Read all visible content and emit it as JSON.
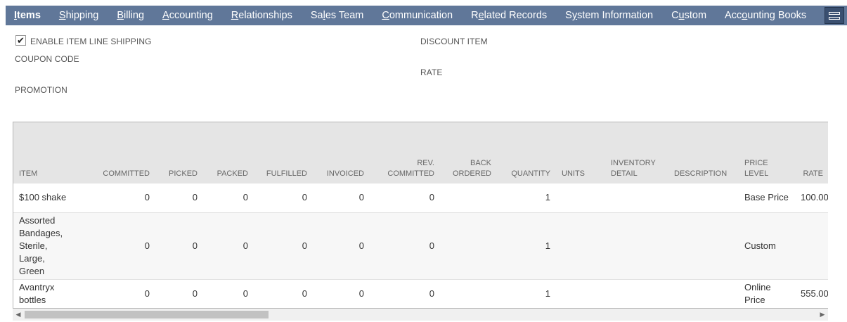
{
  "tabs": [
    {
      "pre": "",
      "key": "I",
      "post": "tems",
      "active": true
    },
    {
      "pre": "",
      "key": "S",
      "post": "hipping"
    },
    {
      "pre": "",
      "key": "B",
      "post": "illing"
    },
    {
      "pre": "",
      "key": "A",
      "post": "ccounting"
    },
    {
      "pre": "",
      "key": "R",
      "post": "elationships"
    },
    {
      "pre": "Sa",
      "key": "l",
      "post": "es Team"
    },
    {
      "pre": "",
      "key": "C",
      "post": "ommunication"
    },
    {
      "pre": "R",
      "key": "e",
      "post": "lated Records"
    },
    {
      "pre": "S",
      "key": "y",
      "post": "stem Information"
    },
    {
      "pre": "C",
      "key": "u",
      "post": "stom"
    },
    {
      "pre": "Acc",
      "key": "o",
      "post": "unting Books"
    }
  ],
  "form": {
    "enable_line_shipping_label": "ENABLE ITEM LINE SHIPPING",
    "enable_line_shipping_checked": "✔",
    "coupon_code_label": "COUPON CODE",
    "promotion_label": "PROMOTION",
    "discount_item_label": "DISCOUNT ITEM",
    "rate_label": "RATE"
  },
  "table": {
    "headers": [
      "ITEM",
      "COMMITTED",
      "PICKED",
      "PACKED",
      "FULFILLED",
      "INVOICED",
      "REV. COMMITTED",
      "BACK ORDERED",
      "QUANTITY",
      "UNITS",
      "INVENTORY DETAIL",
      "DESCRIPTION",
      "PRICE LEVEL",
      "RATE"
    ],
    "rows": [
      {
        "item": "$100 shake",
        "committed": "0",
        "picked": "0",
        "packed": "0",
        "fulfilled": "0",
        "invoiced": "0",
        "rev_committed": "0",
        "back_ordered": "",
        "quantity": "1",
        "units": "",
        "inventory_detail": "",
        "description": "",
        "price_level": "Base Price",
        "rate": "100.00"
      },
      {
        "item": "Assorted Bandages, Sterile, Large, Green",
        "committed": "0",
        "picked": "0",
        "packed": "0",
        "fulfilled": "0",
        "invoiced": "0",
        "rev_committed": "0",
        "back_ordered": "",
        "quantity": "1",
        "units": "",
        "inventory_detail": "",
        "description": "",
        "price_level": "Custom",
        "rate": ""
      },
      {
        "item": "Avantryx bottles",
        "committed": "0",
        "picked": "0",
        "packed": "0",
        "fulfilled": "0",
        "invoiced": "0",
        "rev_committed": "0",
        "back_ordered": "",
        "quantity": "1",
        "units": "",
        "inventory_detail": "",
        "description": "",
        "price_level": "Online Price",
        "rate": "555.00"
      }
    ]
  },
  "scrollbar": {
    "left_arrow": "◀",
    "right_arrow": "▶"
  },
  "colors": {
    "tabbar": "#607799",
    "link": "#255599",
    "header_bg": "#e5e5e5"
  }
}
